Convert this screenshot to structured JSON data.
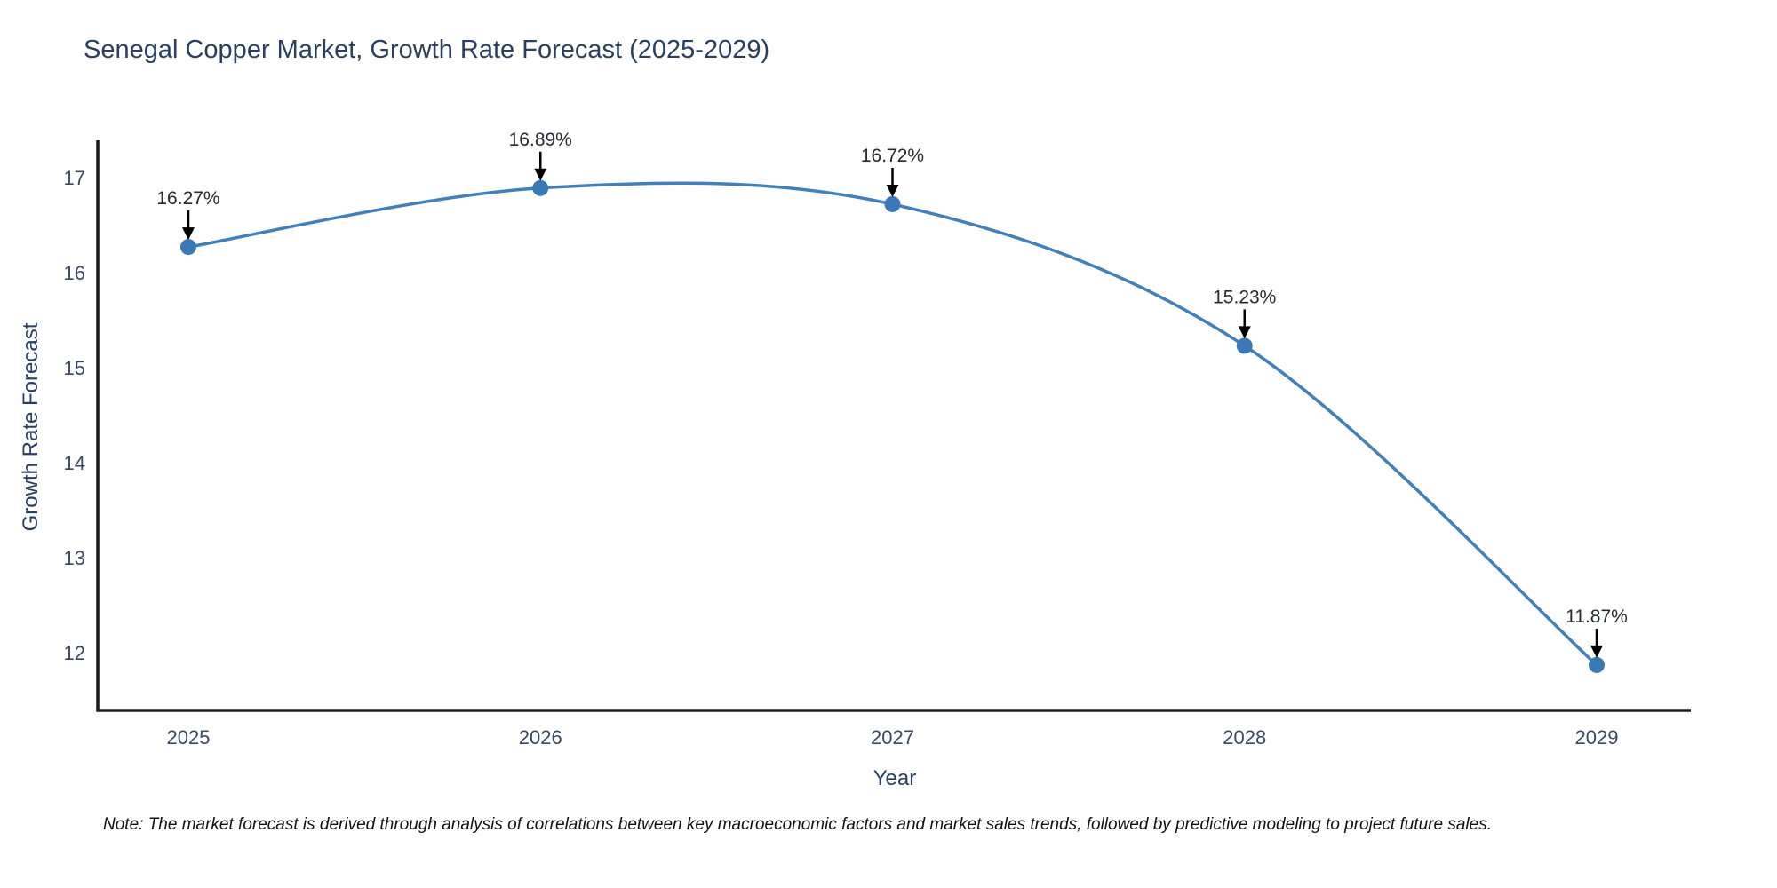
{
  "page": {
    "title": "Senegal Copper Market, Growth Rate Forecast (2025-2029)",
    "note": "Note: The market forecast is derived through analysis of correlations between key macroeconomic factors and market sales trends, followed by predictive modeling to project future sales."
  },
  "chart_data": {
    "type": "line",
    "title": "Senegal Copper Market, Growth Rate Forecast (2025-2029)",
    "xlabel": "Year",
    "ylabel": "Growth Rate Forecast",
    "x": [
      2025,
      2026,
      2027,
      2028,
      2029
    ],
    "y": [
      16.27,
      16.89,
      16.72,
      15.23,
      11.87
    ],
    "point_labels": [
      "16.27%",
      "16.89%",
      "16.72%",
      "15.23%",
      "11.87%"
    ],
    "yticks": [
      12,
      13,
      14,
      15,
      16,
      17
    ],
    "xticks": [
      "2025",
      "2026",
      "2027",
      "2028",
      "2029"
    ],
    "ylim": [
      11.4,
      17.4
    ],
    "grid": false,
    "legend": false,
    "line_shape": "spline",
    "colors": {
      "line": "#4380b8",
      "marker": "#3a79b5",
      "axis": "#1a1a1a",
      "annotation_text": "#26292e",
      "arrow": "#000000",
      "tick_text": "#3b4a63",
      "title_text": "#2a3f5f"
    }
  }
}
